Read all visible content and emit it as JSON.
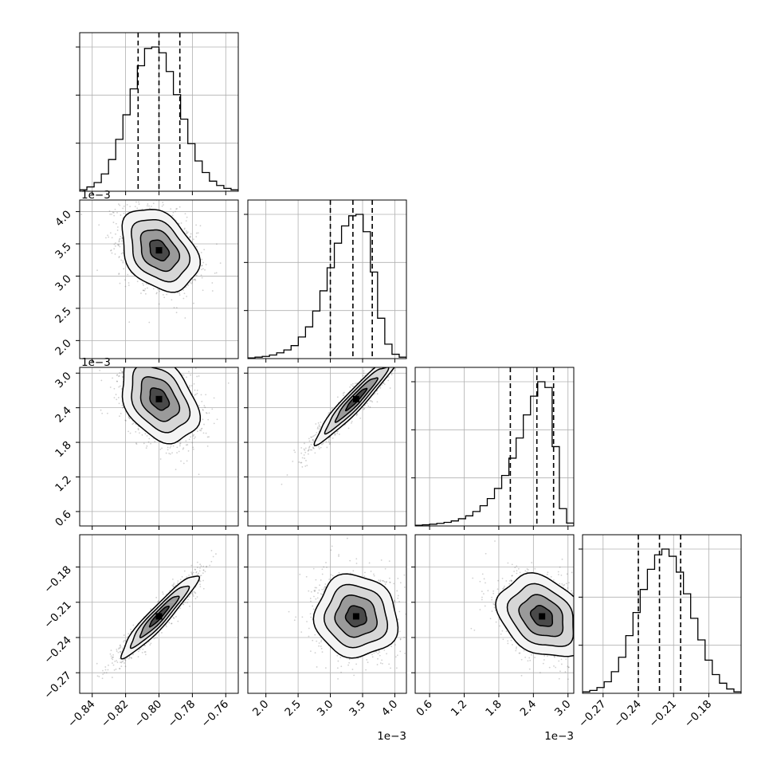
{
  "chart_data": {
    "type": "corner",
    "parameters": [
      {
        "index": 0,
        "tick_values": [
          -0.84,
          -0.82,
          -0.8,
          -0.78,
          -0.76
        ],
        "tick_labels": [
          "−0.84",
          "−0.82",
          "−0.80",
          "−0.78",
          "−0.76"
        ],
        "range": [
          -0.8475,
          -0.7525
        ],
        "offset_text": "",
        "mean": -0.8,
        "sigma": 0.0115,
        "quantiles": [
          -0.8125,
          -0.8,
          -0.7875
        ],
        "hist_counts": [
          1,
          3,
          6,
          12,
          22,
          36,
          53,
          71,
          87,
          99,
          100,
          96,
          83,
          67,
          50,
          33,
          21,
          13,
          7,
          4,
          2,
          1
        ]
      },
      {
        "index": 1,
        "tick_values": [
          2.0,
          2.5,
          3.0,
          3.5,
          4.0
        ],
        "tick_labels": [
          "2.0",
          "2.5",
          "3.0",
          "3.5",
          "4.0"
        ],
        "range": [
          1.72,
          4.18
        ],
        "offset_text": "1e−3",
        "mean": 3.4,
        "sigma": 0.32,
        "quantiles": [
          3.0,
          3.35,
          3.65
        ],
        "hist_counts": [
          0.5,
          1,
          1.5,
          2.5,
          4,
          6,
          9,
          15,
          22,
          33,
          47,
          63,
          80,
          92,
          99,
          100,
          88,
          60,
          28,
          10,
          3,
          1
        ]
      },
      {
        "index": 2,
        "tick_values": [
          0.6,
          1.2,
          1.8,
          2.4,
          3.0
        ],
        "tick_labels": [
          "0.6",
          "1.2",
          "1.8",
          "2.4",
          "3.0"
        ],
        "range": [
          0.35,
          3.1
        ],
        "offset_text": "1e−3",
        "mean": 2.55,
        "sigma": 0.38,
        "quantiles": [
          2.0,
          2.46,
          2.75
        ],
        "hist_counts": [
          0.5,
          0.8,
          1.2,
          1.8,
          2.5,
          3.5,
          5,
          7,
          10,
          14,
          19,
          26,
          35,
          47,
          61,
          77,
          90,
          100,
          96,
          55,
          12,
          2
        ]
      },
      {
        "index": 3,
        "tick_values": [
          -0.27,
          -0.24,
          -0.21,
          -0.18
        ],
        "tick_labels": [
          "−0.27",
          "−0.24",
          "−0.21",
          "−0.18"
        ],
        "range": [
          -0.2875,
          -0.1525
        ],
        "offset_text": "",
        "mean": -0.222,
        "sigma": 0.0175,
        "quantiles": [
          -0.24,
          -0.222,
          -0.204
        ],
        "hist_counts": [
          1,
          2,
          4,
          8,
          15,
          25,
          40,
          56,
          72,
          86,
          96,
          100,
          95,
          84,
          69,
          52,
          37,
          23,
          13,
          7,
          3,
          1
        ]
      }
    ],
    "pairs": [
      {
        "row": 1,
        "col": 0,
        "correlation": -0.32
      },
      {
        "row": 2,
        "col": 0,
        "correlation": -0.36
      },
      {
        "row": 2,
        "col": 1,
        "correlation": 0.95
      },
      {
        "row": 3,
        "col": 0,
        "correlation": 0.94
      },
      {
        "row": 3,
        "col": 1,
        "correlation": -0.05
      },
      {
        "row": 3,
        "col": 2,
        "correlation": -0.28
      }
    ],
    "contour_levels_sigma": [
      0.5,
      1.0,
      1.5,
      2.0
    ],
    "grid": true
  }
}
